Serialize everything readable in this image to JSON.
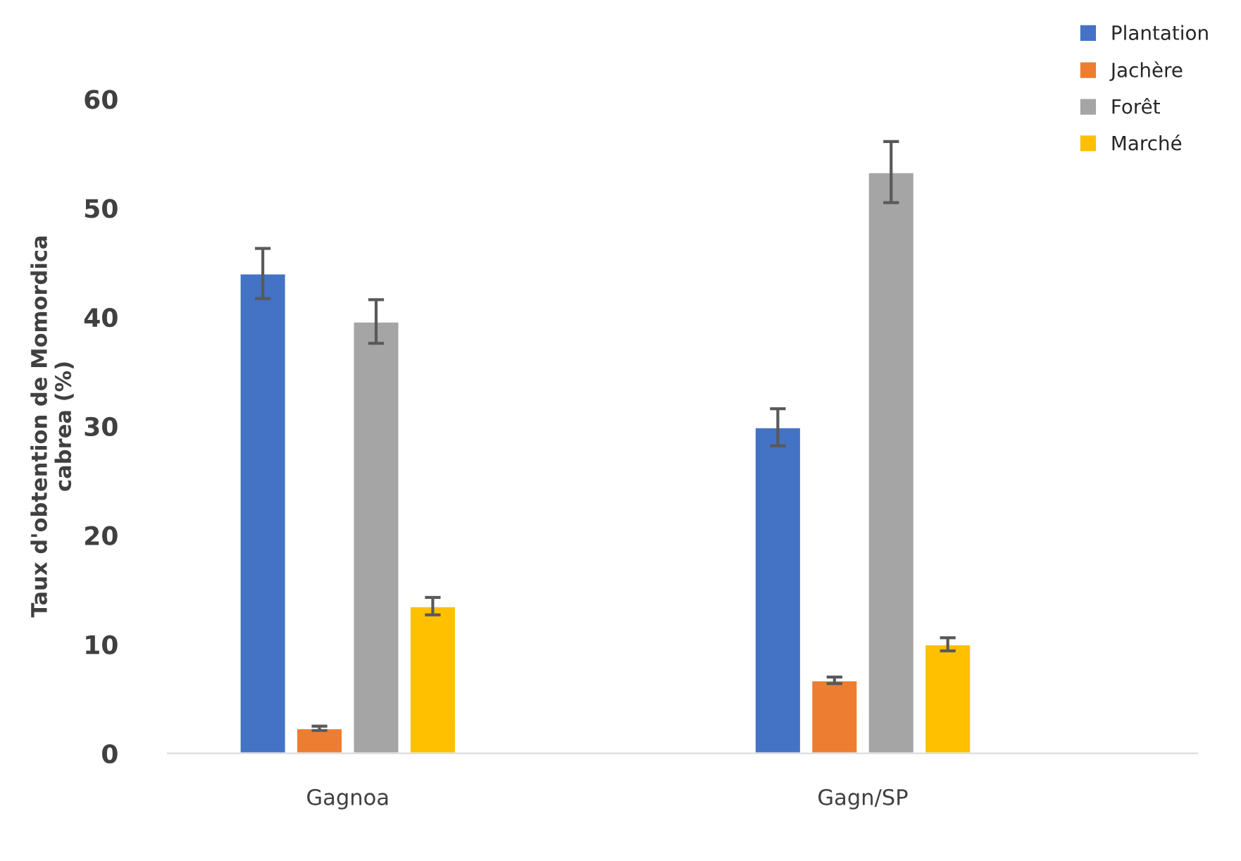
{
  "chart_data": {
    "type": "bar",
    "ylabel": "Taux d'obtention de Momordica\ncabrea (%)",
    "categories": [
      "Gagnoa",
      "Gagn/SP"
    ],
    "series": [
      {
        "name": "Plantation",
        "color": "#4472c4",
        "values": [
          44.0,
          29.9
        ],
        "errors": [
          2.3,
          1.7
        ]
      },
      {
        "name": "Jachère",
        "color": "#ed7d31",
        "values": [
          2.3,
          6.7
        ],
        "errors": [
          0.2,
          0.3
        ]
      },
      {
        "name": "Forêt",
        "color": "#a5a5a5",
        "values": [
          39.6,
          53.3
        ],
        "errors": [
          2.0,
          2.8
        ]
      },
      {
        "name": "Marché",
        "color": "#ffc000",
        "values": [
          13.5,
          10.0
        ],
        "errors": [
          0.8,
          0.6
        ]
      }
    ],
    "ylim": [
      0,
      60
    ],
    "yticks": [
      0,
      10,
      20,
      30,
      40,
      50,
      60
    ],
    "grid": false,
    "legend": "top right"
  }
}
